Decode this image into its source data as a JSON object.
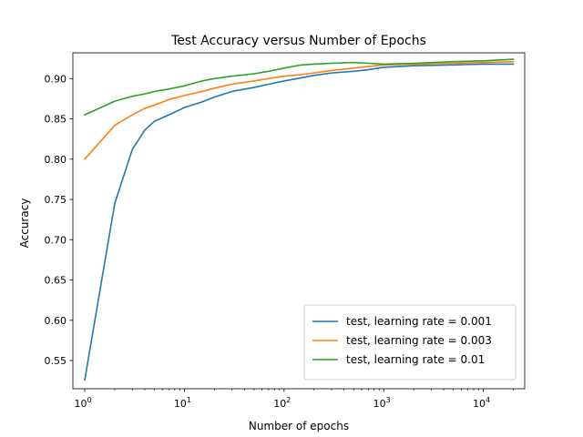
{
  "chart_data": {
    "type": "line",
    "title": "Test Accuracy versus Number of Epochs",
    "xlabel": "Number of epochs",
    "ylabel": "Accuracy",
    "xscale": "log",
    "xlim": [
      0.76,
      26000
    ],
    "ylim": [
      0.515,
      0.932
    ],
    "xticks": [
      {
        "value": 1,
        "label_base": "10",
        "label_exp": "0"
      },
      {
        "value": 10,
        "label_base": "10",
        "label_exp": "1"
      },
      {
        "value": 100,
        "label_base": "10",
        "label_exp": "2"
      },
      {
        "value": 1000,
        "label_base": "10",
        "label_exp": "3"
      },
      {
        "value": 10000,
        "label_base": "10",
        "label_exp": "4"
      }
    ],
    "yticks": [
      "0.55",
      "0.60",
      "0.65",
      "0.70",
      "0.75",
      "0.80",
      "0.85",
      "0.90"
    ],
    "grid": false,
    "legend_position": "lower-right",
    "series": [
      {
        "name": "test, learning rate = 0.001",
        "color": "#1f77b4",
        "x": [
          1,
          2,
          3,
          4,
          5,
          7,
          10,
          15,
          20,
          30,
          50,
          70,
          100,
          150,
          200,
          300,
          500,
          700,
          1000,
          2000,
          5000,
          10000,
          20000
        ],
        "y": [
          0.526,
          0.745,
          0.812,
          0.836,
          0.847,
          0.855,
          0.864,
          0.871,
          0.877,
          0.884,
          0.889,
          0.893,
          0.897,
          0.901,
          0.904,
          0.907,
          0.909,
          0.911,
          0.914,
          0.916,
          0.917,
          0.918,
          0.918
        ]
      },
      {
        "name": "test, learning rate = 0.003",
        "color": "#ff7f0e",
        "x": [
          1,
          2,
          3,
          4,
          5,
          7,
          10,
          15,
          20,
          30,
          50,
          70,
          100,
          150,
          200,
          300,
          500,
          700,
          1000,
          2000,
          5000,
          10000,
          20000
        ],
        "y": [
          0.8,
          0.842,
          0.855,
          0.863,
          0.867,
          0.874,
          0.879,
          0.884,
          0.888,
          0.893,
          0.897,
          0.9,
          0.903,
          0.905,
          0.907,
          0.91,
          0.913,
          0.915,
          0.917,
          0.918,
          0.919,
          0.92,
          0.921
        ]
      },
      {
        "name": "test, learning rate = 0.01",
        "color": "#2ca02c",
        "x": [
          1,
          2,
          3,
          4,
          5,
          7,
          10,
          15,
          20,
          30,
          50,
          70,
          100,
          150,
          200,
          300,
          500,
          700,
          1000,
          2000,
          5000,
          10000,
          20000
        ],
        "y": [
          0.855,
          0.872,
          0.878,
          0.881,
          0.884,
          0.887,
          0.891,
          0.897,
          0.9,
          0.903,
          0.906,
          0.909,
          0.913,
          0.917,
          0.918,
          0.919,
          0.92,
          0.919,
          0.918,
          0.919,
          0.921,
          0.922,
          0.924
        ]
      }
    ]
  }
}
